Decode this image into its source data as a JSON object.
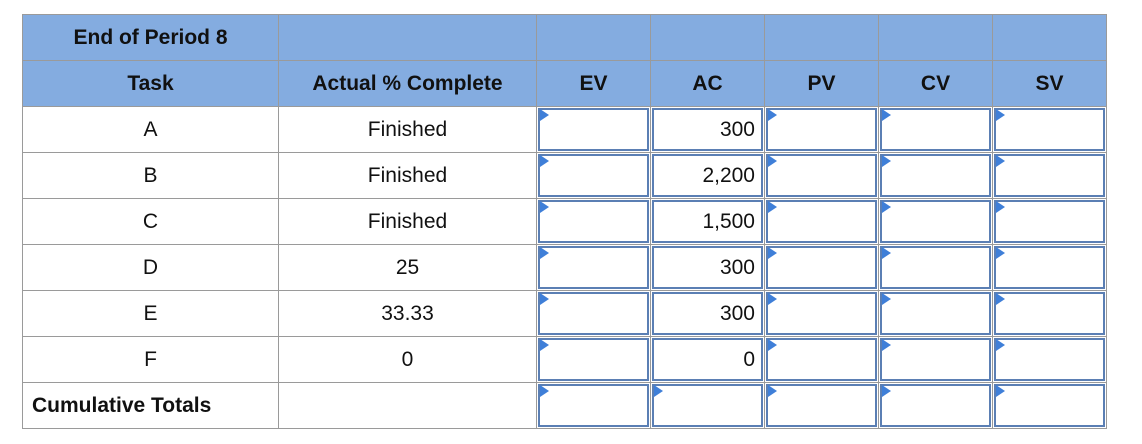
{
  "header": {
    "title": "End of Period 8"
  },
  "table": {
    "columns": [
      "Task",
      "Actual % Complete",
      "EV",
      "AC",
      "PV",
      "CV",
      "SV"
    ],
    "rows": [
      {
        "task": "A",
        "actual": "Finished",
        "ac": "300"
      },
      {
        "task": "B",
        "actual": "Finished",
        "ac": "2,200"
      },
      {
        "task": "C",
        "actual": "Finished",
        "ac": "1,500"
      },
      {
        "task": "D",
        "actual": "25",
        "ac": "300"
      },
      {
        "task": "E",
        "actual": "33.33",
        "ac": "300"
      },
      {
        "task": "F",
        "actual": "0",
        "ac": "0"
      }
    ],
    "totals_label": "Cumulative Totals"
  }
}
